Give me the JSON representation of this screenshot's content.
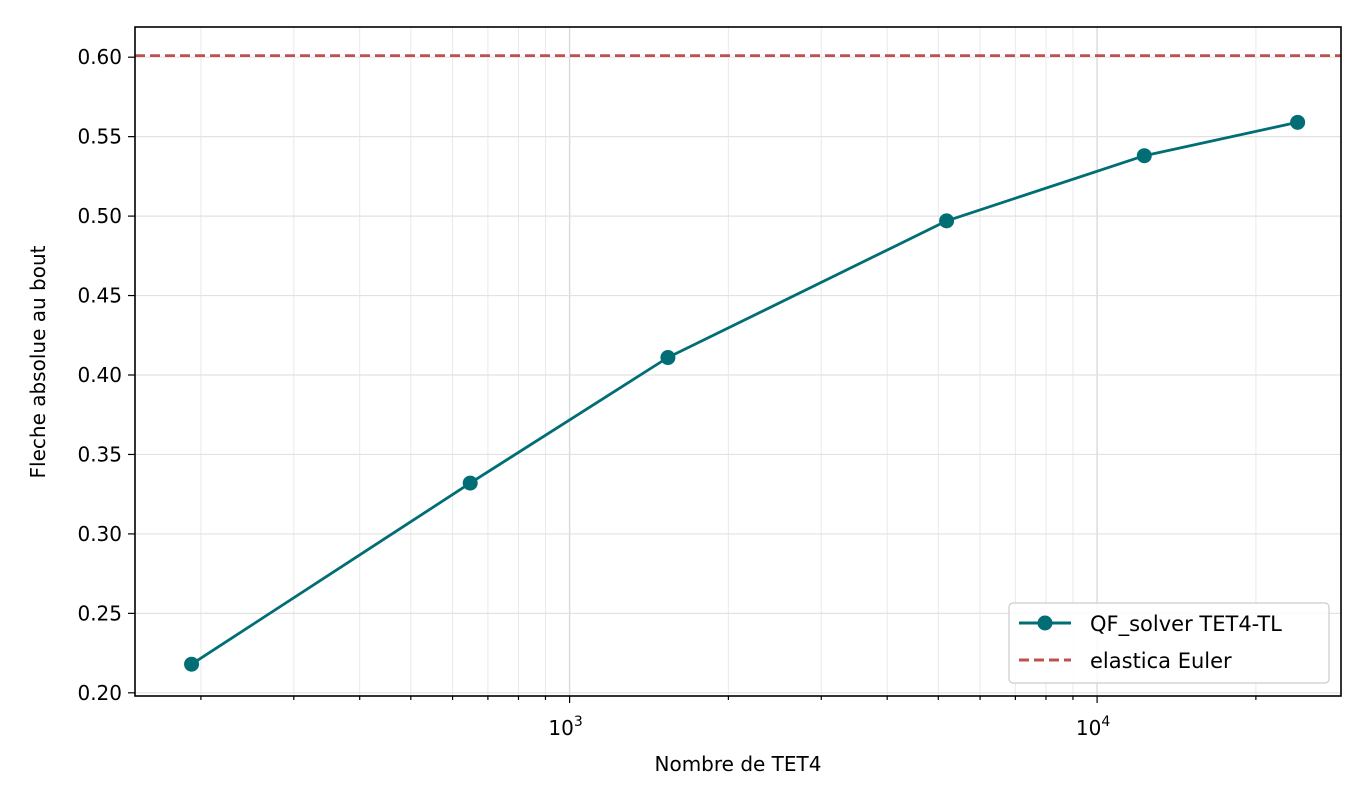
{
  "chart_data": {
    "type": "line",
    "xscale": "log",
    "xlabel": "Nombre de TET4",
    "ylabel": "Fleche absolue au bout",
    "xlim": [
      150,
      29000
    ],
    "ylim": [
      0.198,
      0.619
    ],
    "yticks": [
      "0.20",
      "0.25",
      "0.30",
      "0.35",
      "0.40",
      "0.45",
      "0.50",
      "0.55",
      "0.60"
    ],
    "xticks": [
      {
        "base": "10",
        "exp": "3",
        "value": 1000
      },
      {
        "base": "10",
        "exp": "4",
        "value": 10000
      }
    ],
    "grid": true,
    "legend_position": "lower-right",
    "series": [
      {
        "name": "QF_solver TET4-TL",
        "color": "#006e74",
        "marker": "circle",
        "x": [
          192,
          648,
          1536,
          5184,
          12288,
          24000
        ],
        "y": [
          0.218,
          0.332,
          0.411,
          0.497,
          0.538,
          0.559
        ]
      }
    ],
    "reference_lines": [
      {
        "name": "elastica Euler",
        "color": "#c0504d",
        "style": "dashed",
        "y": 0.601
      }
    ]
  }
}
